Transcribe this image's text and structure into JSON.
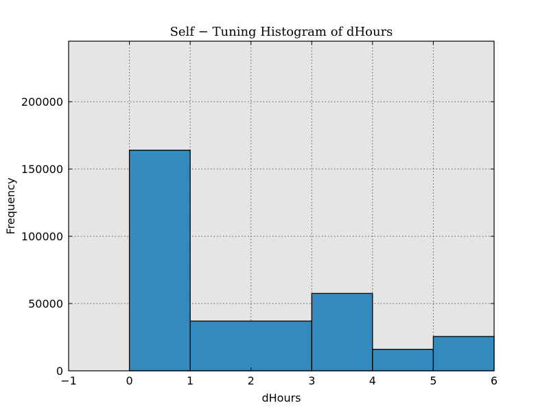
{
  "chart_data": {
    "type": "bar",
    "title": "Self − Tuning Histogram of dHours",
    "xlabel": "dHours",
    "ylabel": "Frequency",
    "xlim": [
      -1,
      6
    ],
    "ylim": [
      0,
      245000
    ],
    "xticks": [
      "−1",
      "0",
      "1",
      "2",
      "3",
      "4",
      "5",
      "6"
    ],
    "yticks": [
      "0",
      "50000",
      "100000",
      "150000",
      "200000"
    ],
    "grid": true,
    "bins": [
      {
        "x_start": 0,
        "x_end": 1,
        "value": 164000
      },
      {
        "x_start": 1,
        "x_end": 3,
        "value": 37000
      },
      {
        "x_start": 3,
        "x_end": 4,
        "value": 57500
      },
      {
        "x_start": 4,
        "x_end": 5,
        "value": 16000
      },
      {
        "x_start": 5,
        "x_end": 6,
        "value": 25500
      }
    ],
    "colors": {
      "bar_fill": "#348abd",
      "plot_background": "#e5e5e5",
      "bar_edge": "#000000",
      "grid": "#555555"
    }
  }
}
